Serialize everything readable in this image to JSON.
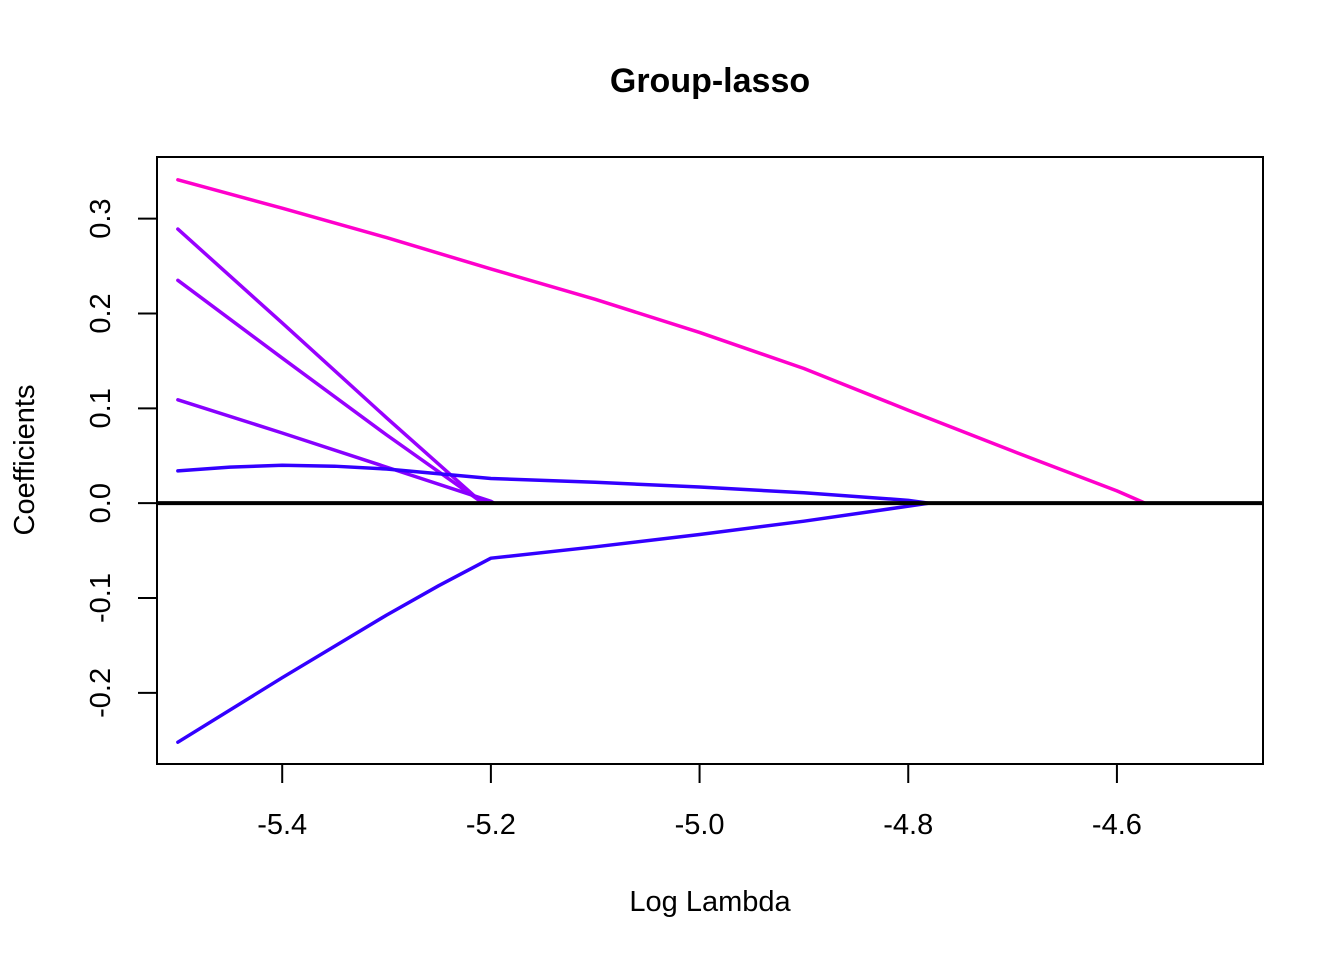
{
  "chart_data": {
    "type": "line",
    "title": "Group-lasso",
    "xlabel": "Log Lambda",
    "ylabel": "Coefficients",
    "xlim": [
      -5.52,
      -4.46
    ],
    "ylim": [
      -0.275,
      0.365
    ],
    "xticks": [
      -5.4,
      -5.2,
      -5.0,
      -4.8,
      -4.6
    ],
    "xtick_labels": [
      "-5.4",
      "-5.2",
      "-5.0",
      "-4.8",
      "-4.6"
    ],
    "yticks": [
      -0.2,
      -0.1,
      0.0,
      0.1,
      0.2,
      0.3
    ],
    "ytick_labels": [
      "-0.2",
      "-0.1",
      "0.0",
      "0.1",
      "0.2",
      "0.3"
    ],
    "zero_line": true,
    "grid": false,
    "legend": "none",
    "series": [
      {
        "color": "#FF00CC",
        "x": [
          -5.5,
          -5.4,
          -5.3,
          -5.2,
          -5.1,
          -5.0,
          -4.9,
          -4.8,
          -4.7,
          -4.6,
          -4.573
        ],
        "y": [
          0.341,
          0.311,
          0.28,
          0.247,
          0.215,
          0.18,
          0.142,
          0.098,
          0.055,
          0.013,
          0.0
        ]
      },
      {
        "color": "#9900FF",
        "x": [
          -5.5,
          -5.4,
          -5.3,
          -5.21,
          -5.2
        ],
        "y": [
          0.289,
          0.19,
          0.09,
          0.002,
          0.0
        ]
      },
      {
        "color": "#9900FF",
        "x": [
          -5.5,
          -5.4,
          -5.3,
          -5.21,
          -5.2
        ],
        "y": [
          0.235,
          0.153,
          0.072,
          0.002,
          0.0
        ]
      },
      {
        "color": "#8800FF",
        "x": [
          -5.5,
          -5.4,
          -5.3,
          -5.2,
          -5.197
        ],
        "y": [
          0.109,
          0.074,
          0.038,
          0.002,
          0.0
        ]
      },
      {
        "color": "#3300FF",
        "x": [
          -5.5,
          -5.45,
          -5.4,
          -5.35,
          -5.3,
          -5.25,
          -5.2,
          -5.1,
          -5.0,
          -4.9,
          -4.8,
          -4.78
        ],
        "y": [
          0.034,
          0.038,
          0.04,
          0.039,
          0.036,
          0.031,
          0.026,
          0.022,
          0.017,
          0.011,
          0.003,
          0.0
        ]
      },
      {
        "color": "#3300FF",
        "x": [
          -5.5,
          -5.4,
          -5.3,
          -5.25,
          -5.2,
          -5.1,
          -5.0,
          -4.9,
          -4.78
        ],
        "y": [
          -0.252,
          -0.184,
          -0.118,
          -0.087,
          -0.058,
          -0.046,
          -0.033,
          -0.019,
          0.0
        ]
      }
    ]
  }
}
